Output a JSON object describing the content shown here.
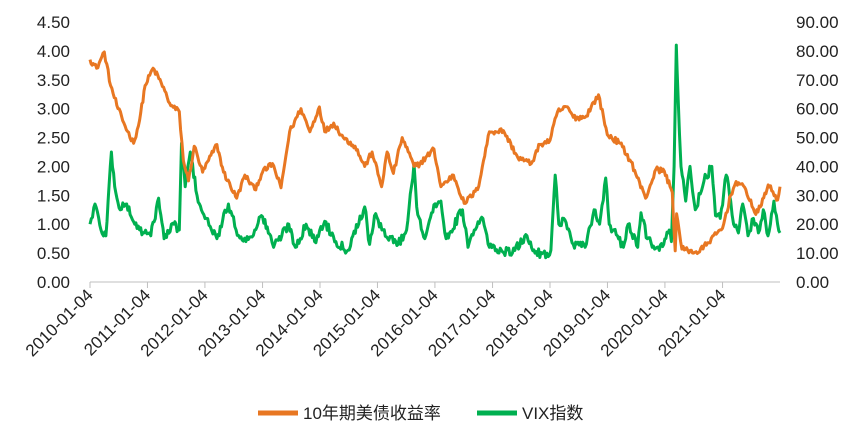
{
  "chart_data": {
    "type": "line",
    "x_tick_labels": [
      "2010-01-04",
      "2011-01-04",
      "2012-01-04",
      "2013-01-04",
      "2014-01-04",
      "2015-01-04",
      "2016-01-04",
      "2017-01-04",
      "2018-01-04",
      "2019-01-04",
      "2020-01-04",
      "2021-01-04"
    ],
    "y_left": {
      "min": 0,
      "max": 4.5,
      "ticks": [
        "0.00",
        "0.50",
        "1.00",
        "1.50",
        "2.00",
        "2.50",
        "3.00",
        "3.50",
        "4.00",
        "4.50"
      ]
    },
    "y_right": {
      "min": 0,
      "max": 90,
      "ticks": [
        "0.00",
        "10.00",
        "20.00",
        "30.00",
        "40.00",
        "50.00",
        "60.00",
        "70.00",
        "80.00",
        "90.00"
      ]
    },
    "grid": false,
    "legend_position": "bottom",
    "series": [
      {
        "name": "10年期美债收益率",
        "axis": "left",
        "color": "#E87722",
        "points": [
          [
            "2010-01-04",
            3.85
          ],
          [
            "2010-02-15",
            3.7
          ],
          [
            "2010-04-05",
            3.98
          ],
          [
            "2010-05-15",
            3.4
          ],
          [
            "2010-07-01",
            3.0
          ],
          [
            "2010-08-15",
            2.7
          ],
          [
            "2010-10-08",
            2.4
          ],
          [
            "2010-11-15",
            2.8
          ],
          [
            "2010-12-20",
            3.4
          ],
          [
            "2011-02-09",
            3.7
          ],
          [
            "2011-04-01",
            3.45
          ],
          [
            "2011-06-01",
            3.05
          ],
          [
            "2011-07-25",
            2.95
          ],
          [
            "2011-08-20",
            2.1
          ],
          [
            "2011-09-22",
            1.75
          ],
          [
            "2011-10-28",
            2.35
          ],
          [
            "2011-12-20",
            1.9
          ],
          [
            "2012-03-20",
            2.38
          ],
          [
            "2012-05-01",
            1.9
          ],
          [
            "2012-07-24",
            1.45
          ],
          [
            "2012-09-14",
            1.85
          ],
          [
            "2012-11-15",
            1.6
          ],
          [
            "2013-01-04",
            1.9
          ],
          [
            "2013-03-08",
            2.05
          ],
          [
            "2013-05-01",
            1.63
          ],
          [
            "2013-06-25",
            2.6
          ],
          [
            "2013-09-05",
            3.0
          ],
          [
            "2013-11-01",
            2.6
          ],
          [
            "2013-12-31",
            3.03
          ],
          [
            "2014-02-03",
            2.6
          ],
          [
            "2014-04-01",
            2.75
          ],
          [
            "2014-06-01",
            2.5
          ],
          [
            "2014-08-15",
            2.35
          ],
          [
            "2014-10-15",
            2.0
          ],
          [
            "2014-12-01",
            2.25
          ],
          [
            "2015-01-30",
            1.65
          ],
          [
            "2015-03-06",
            2.25
          ],
          [
            "2015-04-15",
            1.88
          ],
          [
            "2015-06-10",
            2.5
          ],
          [
            "2015-08-25",
            2.0
          ],
          [
            "2015-10-01",
            2.05
          ],
          [
            "2015-12-29",
            2.3
          ],
          [
            "2016-02-11",
            1.65
          ],
          [
            "2016-05-01",
            1.85
          ],
          [
            "2016-07-08",
            1.36
          ],
          [
            "2016-10-01",
            1.6
          ],
          [
            "2016-12-15",
            2.6
          ],
          [
            "2017-03-14",
            2.62
          ],
          [
            "2017-06-14",
            2.15
          ],
          [
            "2017-09-07",
            2.05
          ],
          [
            "2017-11-01",
            2.38
          ],
          [
            "2018-01-04",
            2.45
          ],
          [
            "2018-02-21",
            2.95
          ],
          [
            "2018-04-25",
            3.03
          ],
          [
            "2018-06-01",
            2.85
          ],
          [
            "2018-08-15",
            2.85
          ],
          [
            "2018-11-08",
            3.24
          ],
          [
            "2019-01-03",
            2.55
          ],
          [
            "2019-03-25",
            2.4
          ],
          [
            "2019-06-03",
            2.08
          ],
          [
            "2019-09-03",
            1.45
          ],
          [
            "2019-11-08",
            1.95
          ],
          [
            "2019-12-31",
            1.92
          ],
          [
            "2020-02-20",
            1.55
          ],
          [
            "2020-03-09",
            0.54
          ],
          [
            "2020-03-18",
            1.18
          ],
          [
            "2020-04-21",
            0.57
          ],
          [
            "2020-08-04",
            0.51
          ],
          [
            "2020-10-01",
            0.68
          ],
          [
            "2021-01-04",
            0.93
          ],
          [
            "2021-02-25",
            1.5
          ],
          [
            "2021-03-31",
            1.74
          ],
          [
            "2021-06-01",
            1.6
          ],
          [
            "2021-08-03",
            1.17
          ],
          [
            "2021-09-01",
            1.3
          ],
          [
            "2021-10-21",
            1.68
          ],
          [
            "2021-12-20",
            1.42
          ],
          [
            "2022-01-04",
            1.65
          ]
        ]
      },
      {
        "name": "VIX指数",
        "axis": "right",
        "color": "#00B050",
        "points": [
          [
            "2010-01-04",
            20
          ],
          [
            "2010-02-05",
            27
          ],
          [
            "2010-03-15",
            18
          ],
          [
            "2010-04-15",
            16
          ],
          [
            "2010-05-20",
            45
          ],
          [
            "2010-06-10",
            33
          ],
          [
            "2010-07-15",
            25
          ],
          [
            "2010-08-25",
            27
          ],
          [
            "2010-10-15",
            20
          ],
          [
            "2010-12-15",
            17
          ],
          [
            "2011-01-25",
            16
          ],
          [
            "2011-03-16",
            29
          ],
          [
            "2011-04-20",
            15
          ],
          [
            "2011-06-20",
            20
          ],
          [
            "2011-07-25",
            18
          ],
          [
            "2011-08-08",
            48
          ],
          [
            "2011-09-01",
            33
          ],
          [
            "2011-10-03",
            45
          ],
          [
            "2011-11-15",
            30
          ],
          [
            "2011-12-20",
            24
          ],
          [
            "2012-02-15",
            18
          ],
          [
            "2012-03-20",
            15
          ],
          [
            "2012-06-01",
            27
          ],
          [
            "2012-07-20",
            18
          ],
          [
            "2012-09-20",
            14
          ],
          [
            "2012-11-15",
            18
          ],
          [
            "2012-12-28",
            23
          ],
          [
            "2013-02-25",
            16
          ],
          [
            "2013-03-15",
            12
          ],
          [
            "2013-06-20",
            20
          ],
          [
            "2013-08-01",
            12
          ],
          [
            "2013-10-08",
            20
          ],
          [
            "2013-12-01",
            14
          ],
          [
            "2014-02-03",
            21
          ],
          [
            "2014-04-15",
            14
          ],
          [
            "2014-07-01",
            11
          ],
          [
            "2014-08-01",
            16
          ],
          [
            "2014-10-15",
            26
          ],
          [
            "2014-11-15",
            13
          ],
          [
            "2014-12-16",
            23
          ],
          [
            "2015-02-01",
            18
          ],
          [
            "2015-05-15",
            13
          ],
          [
            "2015-07-08",
            18
          ],
          [
            "2015-08-24",
            41
          ],
          [
            "2015-09-10",
            26
          ],
          [
            "2015-11-01",
            15
          ],
          [
            "2015-12-14",
            24
          ],
          [
            "2016-01-20",
            27
          ],
          [
            "2016-02-11",
            28
          ],
          [
            "2016-03-15",
            15
          ],
          [
            "2016-06-27",
            25
          ],
          [
            "2016-08-01",
            12
          ],
          [
            "2016-09-10",
            18
          ],
          [
            "2016-11-04",
            22
          ],
          [
            "2016-12-15",
            12
          ],
          [
            "2017-03-01",
            11
          ],
          [
            "2017-05-10",
            10
          ],
          [
            "2017-08-11",
            16
          ],
          [
            "2017-10-01",
            10
          ],
          [
            "2017-12-15",
            10
          ],
          [
            "2018-01-10",
            11
          ],
          [
            "2018-02-06",
            37
          ],
          [
            "2018-03-01",
            20
          ],
          [
            "2018-04-01",
            22
          ],
          [
            "2018-06-01",
            13
          ],
          [
            "2018-08-15",
            12
          ],
          [
            "2018-10-11",
            25
          ],
          [
            "2018-11-15",
            20
          ],
          [
            "2018-12-24",
            36
          ],
          [
            "2019-01-15",
            20
          ],
          [
            "2019-04-15",
            12
          ],
          [
            "2019-05-15",
            20
          ],
          [
            "2019-07-15",
            12
          ],
          [
            "2019-08-05",
            24
          ],
          [
            "2019-09-15",
            15
          ],
          [
            "2019-11-15",
            12
          ],
          [
            "2019-12-27",
            13
          ],
          [
            "2020-01-31",
            18
          ],
          [
            "2020-02-14",
            14
          ],
          [
            "2020-03-02",
            40
          ],
          [
            "2020-03-16",
            82
          ],
          [
            "2020-03-27",
            65
          ],
          [
            "2020-04-15",
            40
          ],
          [
            "2020-05-15",
            28
          ],
          [
            "2020-06-11",
            40
          ],
          [
            "2020-07-15",
            25
          ],
          [
            "2020-09-08",
            35
          ],
          [
            "2020-10-28",
            40
          ],
          [
            "2020-11-20",
            23
          ],
          [
            "2020-12-20",
            22
          ],
          [
            "2021-01-27",
            37
          ],
          [
            "2021-02-25",
            28
          ],
          [
            "2021-03-15",
            20
          ],
          [
            "2021-04-15",
            17
          ],
          [
            "2021-05-12",
            27
          ],
          [
            "2021-06-15",
            16
          ],
          [
            "2021-07-19",
            22
          ],
          [
            "2021-08-20",
            17
          ],
          [
            "2021-09-20",
            25
          ],
          [
            "2021-10-20",
            16
          ],
          [
            "2021-11-26",
            28
          ],
          [
            "2021-12-20",
            20
          ],
          [
            "2022-01-04",
            17
          ]
        ]
      }
    ]
  }
}
